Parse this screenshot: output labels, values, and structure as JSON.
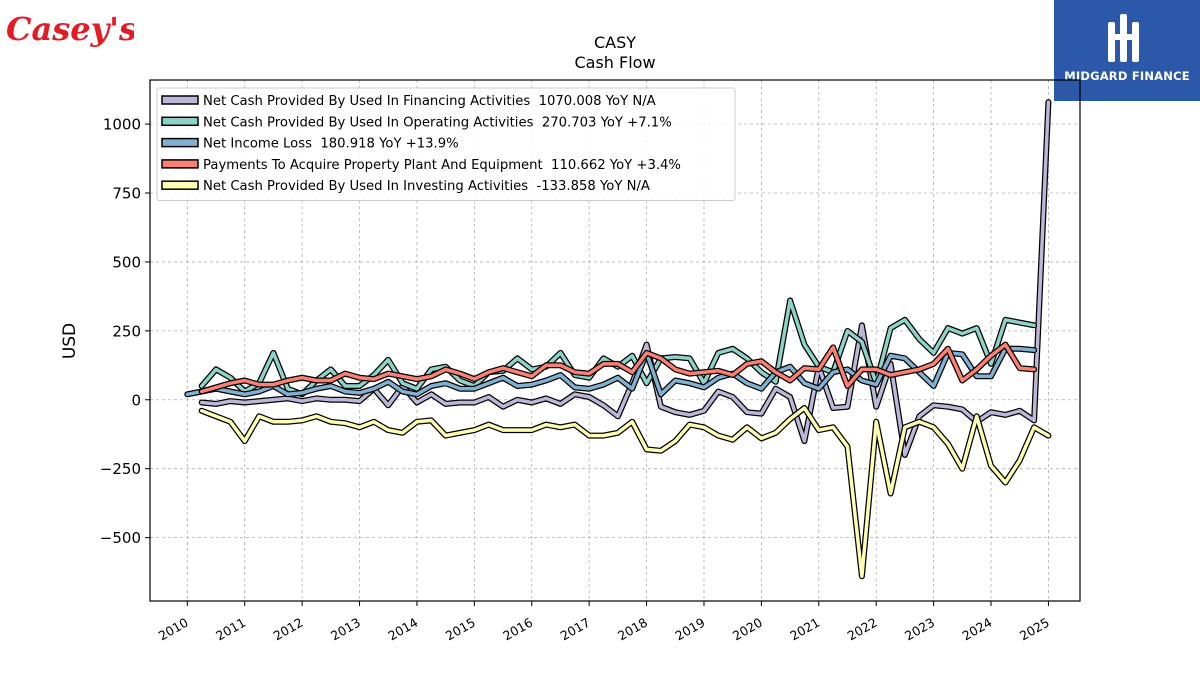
{
  "brand": {
    "left_logo_text": "Casey's",
    "right_logo_text": "MIDGARD FINANCE",
    "left_logo_color": "#e31b23",
    "right_logo_bg": "#2b58a8"
  },
  "chart_data": {
    "type": "line",
    "title": "CASY",
    "subtitle": "Cash Flow",
    "xlabel": "",
    "ylabel": "USD",
    "xlim": [
      2009.35,
      2025.55
    ],
    "ylim": [
      -730,
      1160
    ],
    "xticks": [
      2010,
      2011,
      2012,
      2013,
      2014,
      2015,
      2016,
      2017,
      2018,
      2019,
      2020,
      2021,
      2022,
      2023,
      2024,
      2025
    ],
    "yticks": [
      -500,
      -250,
      0,
      250,
      500,
      750,
      1000
    ],
    "ytick_labels": [
      "−500",
      "−250",
      "0",
      "250",
      "500",
      "750",
      "1000"
    ],
    "grid": true,
    "legend_position": "top-left",
    "series": [
      {
        "name": "Net Cash Provided By Used In Financing Activities  1070.008 YoY N/A",
        "color": "#bcb7d8",
        "points": [
          [
            2010.25,
            -10
          ],
          [
            2010.5,
            -15
          ],
          [
            2010.75,
            -5
          ],
          [
            2011.0,
            -10
          ],
          [
            2011.25,
            -5
          ],
          [
            2011.5,
            0
          ],
          [
            2011.75,
            5
          ],
          [
            2012.0,
            -5
          ],
          [
            2012.25,
            5
          ],
          [
            2012.5,
            0
          ],
          [
            2012.75,
            0
          ],
          [
            2013.0,
            -5
          ],
          [
            2013.25,
            40
          ],
          [
            2013.5,
            -20
          ],
          [
            2013.75,
            50
          ],
          [
            2014.0,
            -10
          ],
          [
            2014.25,
            20
          ],
          [
            2014.5,
            -15
          ],
          [
            2014.75,
            -10
          ],
          [
            2015.0,
            -10
          ],
          [
            2015.25,
            10
          ],
          [
            2015.5,
            -25
          ],
          [
            2015.75,
            0
          ],
          [
            2016.0,
            -10
          ],
          [
            2016.25,
            5
          ],
          [
            2016.5,
            -15
          ],
          [
            2016.75,
            20
          ],
          [
            2017.0,
            10
          ],
          [
            2017.25,
            -20
          ],
          [
            2017.5,
            -60
          ],
          [
            2017.75,
            60
          ],
          [
            2018.0,
            200
          ],
          [
            2018.25,
            -25
          ],
          [
            2018.5,
            -45
          ],
          [
            2018.75,
            -55
          ],
          [
            2019.0,
            -40
          ],
          [
            2019.25,
            30
          ],
          [
            2019.5,
            10
          ],
          [
            2019.75,
            -45
          ],
          [
            2020.0,
            -50
          ],
          [
            2020.25,
            40
          ],
          [
            2020.5,
            10
          ],
          [
            2020.75,
            -150
          ],
          [
            2021.0,
            120
          ],
          [
            2021.25,
            -30
          ],
          [
            2021.5,
            -25
          ],
          [
            2021.75,
            270
          ],
          [
            2022.0,
            -25
          ],
          [
            2022.25,
            130
          ],
          [
            2022.5,
            -200
          ],
          [
            2022.75,
            -60
          ],
          [
            2023.0,
            -20
          ],
          [
            2023.25,
            -25
          ],
          [
            2023.5,
            -35
          ],
          [
            2023.75,
            -80
          ],
          [
            2024.0,
            -45
          ],
          [
            2024.25,
            -55
          ],
          [
            2024.5,
            -40
          ],
          [
            2024.75,
            -75
          ],
          [
            2025.0,
            1080
          ]
        ]
      },
      {
        "name": "Net Cash Provided By Used In Operating Activities  270.703 YoY +7.1%",
        "color": "#8dd3c7",
        "points": [
          [
            2010.25,
            50
          ],
          [
            2010.5,
            110
          ],
          [
            2010.75,
            80
          ],
          [
            2011.0,
            30
          ],
          [
            2011.25,
            60
          ],
          [
            2011.5,
            170
          ],
          [
            2011.75,
            40
          ],
          [
            2012.0,
            20
          ],
          [
            2012.25,
            70
          ],
          [
            2012.5,
            110
          ],
          [
            2012.75,
            50
          ],
          [
            2013.0,
            50
          ],
          [
            2013.25,
            90
          ],
          [
            2013.5,
            145
          ],
          [
            2013.75,
            60
          ],
          [
            2014.0,
            40
          ],
          [
            2014.25,
            110
          ],
          [
            2014.5,
            120
          ],
          [
            2014.75,
            70
          ],
          [
            2015.0,
            50
          ],
          [
            2015.25,
            100
          ],
          [
            2015.5,
            105
          ],
          [
            2015.75,
            150
          ],
          [
            2016.0,
            110
          ],
          [
            2016.25,
            120
          ],
          [
            2016.5,
            170
          ],
          [
            2016.75,
            90
          ],
          [
            2017.0,
            80
          ],
          [
            2017.25,
            150
          ],
          [
            2017.5,
            120
          ],
          [
            2017.75,
            160
          ],
          [
            2018.0,
            60
          ],
          [
            2018.25,
            150
          ],
          [
            2018.5,
            155
          ],
          [
            2018.75,
            150
          ],
          [
            2019.0,
            60
          ],
          [
            2019.25,
            170
          ],
          [
            2019.5,
            185
          ],
          [
            2019.75,
            150
          ],
          [
            2020.0,
            100
          ],
          [
            2020.25,
            65
          ],
          [
            2020.5,
            360
          ],
          [
            2020.75,
            200
          ],
          [
            2021.0,
            120
          ],
          [
            2021.25,
            100
          ],
          [
            2021.5,
            250
          ],
          [
            2021.75,
            210
          ],
          [
            2022.0,
            60
          ],
          [
            2022.25,
            260
          ],
          [
            2022.5,
            290
          ],
          [
            2022.75,
            220
          ],
          [
            2023.0,
            170
          ],
          [
            2023.25,
            260
          ],
          [
            2023.5,
            240
          ],
          [
            2023.75,
            260
          ],
          [
            2024.0,
            130
          ],
          [
            2024.25,
            290
          ],
          [
            2024.5,
            280
          ],
          [
            2024.75,
            270
          ]
        ]
      },
      {
        "name": "Net Income Loss  180.918 YoY +13.9%",
        "color": "#80b1d3",
        "points": [
          [
            2010.0,
            20
          ],
          [
            2010.25,
            30
          ],
          [
            2010.5,
            40
          ],
          [
            2010.75,
            30
          ],
          [
            2011.0,
            20
          ],
          [
            2011.25,
            30
          ],
          [
            2011.5,
            50
          ],
          [
            2011.75,
            20
          ],
          [
            2012.0,
            25
          ],
          [
            2012.25,
            40
          ],
          [
            2012.5,
            50
          ],
          [
            2012.75,
            30
          ],
          [
            2013.0,
            25
          ],
          [
            2013.25,
            40
          ],
          [
            2013.5,
            65
          ],
          [
            2013.75,
            30
          ],
          [
            2014.0,
            20
          ],
          [
            2014.25,
            50
          ],
          [
            2014.5,
            60
          ],
          [
            2014.75,
            40
          ],
          [
            2015.0,
            40
          ],
          [
            2015.25,
            60
          ],
          [
            2015.5,
            80
          ],
          [
            2015.75,
            50
          ],
          [
            2016.0,
            55
          ],
          [
            2016.25,
            70
          ],
          [
            2016.5,
            90
          ],
          [
            2016.75,
            45
          ],
          [
            2017.0,
            40
          ],
          [
            2017.25,
            55
          ],
          [
            2017.5,
            80
          ],
          [
            2017.75,
            40
          ],
          [
            2018.0,
            170
          ],
          [
            2018.25,
            20
          ],
          [
            2018.5,
            70
          ],
          [
            2018.75,
            60
          ],
          [
            2019.0,
            45
          ],
          [
            2019.25,
            80
          ],
          [
            2019.5,
            95
          ],
          [
            2019.75,
            60
          ],
          [
            2020.0,
            40
          ],
          [
            2020.25,
            100
          ],
          [
            2020.5,
            120
          ],
          [
            2020.75,
            60
          ],
          [
            2021.0,
            40
          ],
          [
            2021.25,
            100
          ],
          [
            2021.5,
            110
          ],
          [
            2021.75,
            70
          ],
          [
            2022.0,
            55
          ],
          [
            2022.25,
            160
          ],
          [
            2022.5,
            150
          ],
          [
            2022.75,
            100
          ],
          [
            2023.0,
            50
          ],
          [
            2023.25,
            170
          ],
          [
            2023.5,
            165
          ],
          [
            2023.75,
            85
          ],
          [
            2024.0,
            85
          ],
          [
            2024.25,
            185
          ],
          [
            2024.5,
            185
          ],
          [
            2024.75,
            180
          ]
        ]
      },
      {
        "name": "Payments To Acquire Property Plant And Equipment  110.662 YoY +3.4%",
        "color": "#fb8072",
        "points": [
          [
            2010.25,
            30
          ],
          [
            2010.5,
            45
          ],
          [
            2010.75,
            60
          ],
          [
            2011.0,
            70
          ],
          [
            2011.25,
            55
          ],
          [
            2011.5,
            55
          ],
          [
            2011.75,
            70
          ],
          [
            2012.0,
            80
          ],
          [
            2012.25,
            70
          ],
          [
            2012.5,
            70
          ],
          [
            2012.75,
            95
          ],
          [
            2013.0,
            80
          ],
          [
            2013.25,
            75
          ],
          [
            2013.5,
            95
          ],
          [
            2013.75,
            85
          ],
          [
            2014.0,
            75
          ],
          [
            2014.25,
            85
          ],
          [
            2014.5,
            110
          ],
          [
            2014.75,
            95
          ],
          [
            2015.0,
            75
          ],
          [
            2015.25,
            100
          ],
          [
            2015.5,
            115
          ],
          [
            2015.75,
            100
          ],
          [
            2016.0,
            85
          ],
          [
            2016.25,
            125
          ],
          [
            2016.5,
            125
          ],
          [
            2016.75,
            100
          ],
          [
            2017.0,
            95
          ],
          [
            2017.25,
            130
          ],
          [
            2017.5,
            130
          ],
          [
            2017.75,
            100
          ],
          [
            2018.0,
            170
          ],
          [
            2018.25,
            150
          ],
          [
            2018.5,
            110
          ],
          [
            2018.75,
            95
          ],
          [
            2019.0,
            100
          ],
          [
            2019.25,
            105
          ],
          [
            2019.5,
            90
          ],
          [
            2019.75,
            130
          ],
          [
            2020.0,
            140
          ],
          [
            2020.25,
            100
          ],
          [
            2020.5,
            70
          ],
          [
            2020.75,
            115
          ],
          [
            2021.0,
            110
          ],
          [
            2021.25,
            190
          ],
          [
            2021.5,
            50
          ],
          [
            2021.75,
            110
          ],
          [
            2022.0,
            110
          ],
          [
            2022.25,
            90
          ],
          [
            2022.5,
            100
          ],
          [
            2022.75,
            110
          ],
          [
            2023.0,
            130
          ],
          [
            2023.25,
            185
          ],
          [
            2023.5,
            70
          ],
          [
            2023.75,
            110
          ],
          [
            2024.0,
            160
          ],
          [
            2024.25,
            200
          ],
          [
            2024.5,
            115
          ],
          [
            2024.75,
            110
          ]
        ]
      },
      {
        "name": "Net Cash Provided By Used In Investing Activities  -133.858 YoY N/A",
        "color": "#ffffb3",
        "points": [
          [
            2010.25,
            -40
          ],
          [
            2010.5,
            -60
          ],
          [
            2010.75,
            -80
          ],
          [
            2011.0,
            -150
          ],
          [
            2011.25,
            -60
          ],
          [
            2011.5,
            -80
          ],
          [
            2011.75,
            -80
          ],
          [
            2012.0,
            -75
          ],
          [
            2012.25,
            -60
          ],
          [
            2012.5,
            -80
          ],
          [
            2012.75,
            -85
          ],
          [
            2013.0,
            -100
          ],
          [
            2013.25,
            -80
          ],
          [
            2013.5,
            -110
          ],
          [
            2013.75,
            -120
          ],
          [
            2014.0,
            -80
          ],
          [
            2014.25,
            -75
          ],
          [
            2014.5,
            -130
          ],
          [
            2014.75,
            -120
          ],
          [
            2015.0,
            -110
          ],
          [
            2015.25,
            -90
          ],
          [
            2015.5,
            -110
          ],
          [
            2015.75,
            -110
          ],
          [
            2016.0,
            -110
          ],
          [
            2016.25,
            -90
          ],
          [
            2016.5,
            -100
          ],
          [
            2016.75,
            -90
          ],
          [
            2017.0,
            -130
          ],
          [
            2017.25,
            -130
          ],
          [
            2017.5,
            -120
          ],
          [
            2017.75,
            -80
          ],
          [
            2018.0,
            -180
          ],
          [
            2018.25,
            -185
          ],
          [
            2018.5,
            -150
          ],
          [
            2018.75,
            -90
          ],
          [
            2019.0,
            -100
          ],
          [
            2019.25,
            -130
          ],
          [
            2019.5,
            -145
          ],
          [
            2019.75,
            -100
          ],
          [
            2020.0,
            -140
          ],
          [
            2020.25,
            -120
          ],
          [
            2020.5,
            -70
          ],
          [
            2020.75,
            -30
          ],
          [
            2021.0,
            -110
          ],
          [
            2021.25,
            -100
          ],
          [
            2021.5,
            -170
          ],
          [
            2021.75,
            -640
          ],
          [
            2022.0,
            -80
          ],
          [
            2022.25,
            -340
          ],
          [
            2022.5,
            -100
          ],
          [
            2022.75,
            -80
          ],
          [
            2023.0,
            -100
          ],
          [
            2023.25,
            -160
          ],
          [
            2023.5,
            -250
          ],
          [
            2023.75,
            -60
          ],
          [
            2024.0,
            -240
          ],
          [
            2024.25,
            -300
          ],
          [
            2024.5,
            -220
          ],
          [
            2024.75,
            -100
          ],
          [
            2025.0,
            -130
          ]
        ]
      }
    ]
  }
}
